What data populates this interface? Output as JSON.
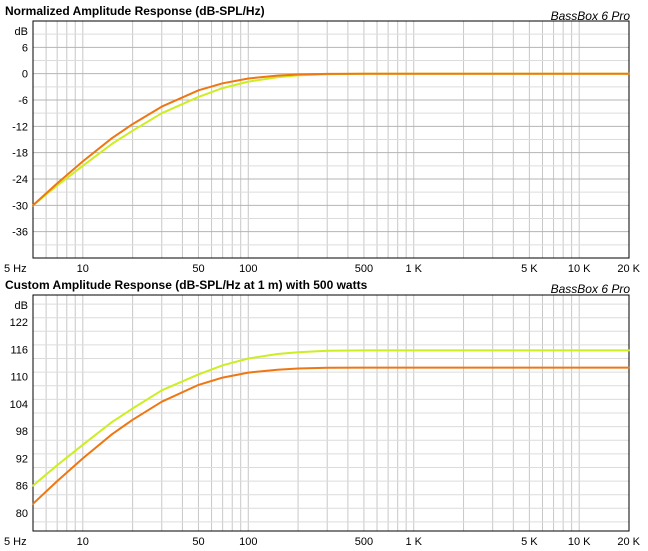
{
  "chart_data": [
    {
      "type": "line",
      "title": "Normalized Amplitude Response (dB-SPL/Hz)",
      "brand": "BassBox 6 Pro",
      "ylabel": "dB",
      "xscale": "log",
      "xlim": [
        5,
        20000
      ],
      "ylim": [
        -42,
        12
      ],
      "grid": true,
      "y_ticks": [
        6,
        0,
        -6,
        -12,
        -18,
        -24,
        -30,
        -36
      ],
      "x_ticks": [
        {
          "v": 5,
          "label": "5 Hz"
        },
        {
          "v": 10,
          "label": "10"
        },
        {
          "v": 50,
          "label": "50"
        },
        {
          "v": 100,
          "label": "100"
        },
        {
          "v": 500,
          "label": "500"
        },
        {
          "v": 1000,
          "label": "1 K"
        },
        {
          "v": 5000,
          "label": "5 K"
        },
        {
          "v": 10000,
          "label": "10 K"
        },
        {
          "v": 20000,
          "label": "20 K"
        }
      ],
      "series": [
        {
          "color": "#ccee22",
          "x": [
            5,
            7,
            10,
            15,
            20,
            30,
            50,
            70,
            100,
            150,
            200,
            300,
            500,
            1000,
            5000,
            20000
          ],
          "y": [
            -30,
            -25.5,
            -21,
            -16,
            -13,
            -9,
            -5.3,
            -3.3,
            -1.8,
            -0.8,
            -0.4,
            -0.15,
            0,
            0,
            0,
            0
          ]
        },
        {
          "color": "#ee7711",
          "x": [
            5,
            7,
            10,
            15,
            20,
            30,
            50,
            70,
            100,
            150,
            200,
            300,
            500,
            1000,
            5000,
            20000
          ],
          "y": [
            -30,
            -25,
            -20,
            -14.7,
            -11.5,
            -7.5,
            -3.8,
            -2.2,
            -1.1,
            -0.45,
            -0.2,
            -0.05,
            0,
            0,
            0,
            0
          ]
        }
      ]
    },
    {
      "type": "line",
      "title": "Custom Amplitude Response (dB-SPL/Hz at 1 m) with 500 watts",
      "brand": "BassBox 6 Pro",
      "ylabel": "dB",
      "xscale": "log",
      "xlim": [
        5,
        20000
      ],
      "ylim": [
        76,
        128
      ],
      "grid": true,
      "y_ticks": [
        122,
        116,
        110,
        104,
        98,
        92,
        86,
        80
      ],
      "x_ticks": [
        {
          "v": 5,
          "label": "5 Hz"
        },
        {
          "v": 10,
          "label": "10"
        },
        {
          "v": 50,
          "label": "50"
        },
        {
          "v": 100,
          "label": "100"
        },
        {
          "v": 500,
          "label": "500"
        },
        {
          "v": 1000,
          "label": "1 K"
        },
        {
          "v": 5000,
          "label": "5 K"
        },
        {
          "v": 10000,
          "label": "10 K"
        },
        {
          "v": 20000,
          "label": "20 K"
        }
      ],
      "series": [
        {
          "color": "#ccee22",
          "x": [
            5,
            7,
            10,
            15,
            20,
            30,
            50,
            70,
            100,
            150,
            200,
            300,
            500,
            1000,
            5000,
            20000
          ],
          "y": [
            86,
            90.5,
            95,
            100,
            103,
            107,
            110.5,
            112.5,
            114,
            115,
            115.4,
            115.7,
            115.8,
            115.8,
            115.8,
            115.8
          ]
        },
        {
          "color": "#ee7711",
          "x": [
            5,
            7,
            10,
            15,
            20,
            30,
            50,
            70,
            100,
            150,
            200,
            300,
            500,
            1000,
            5000,
            20000
          ],
          "y": [
            82,
            87,
            92,
            97.3,
            100.5,
            104.5,
            108.2,
            109.8,
            110.9,
            111.55,
            111.8,
            111.95,
            112,
            112,
            112,
            112
          ]
        }
      ]
    }
  ]
}
